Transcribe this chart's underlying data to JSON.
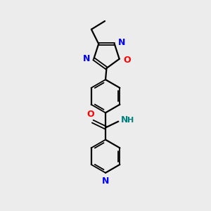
{
  "background_color": "#ececec",
  "bond_color": "#000000",
  "atom_colors": {
    "N": "#0000ff",
    "O": "#ff0000",
    "N_amide": "#008080",
    "C": "#000000"
  },
  "figsize": [
    3.0,
    3.0
  ],
  "dpi": 100
}
